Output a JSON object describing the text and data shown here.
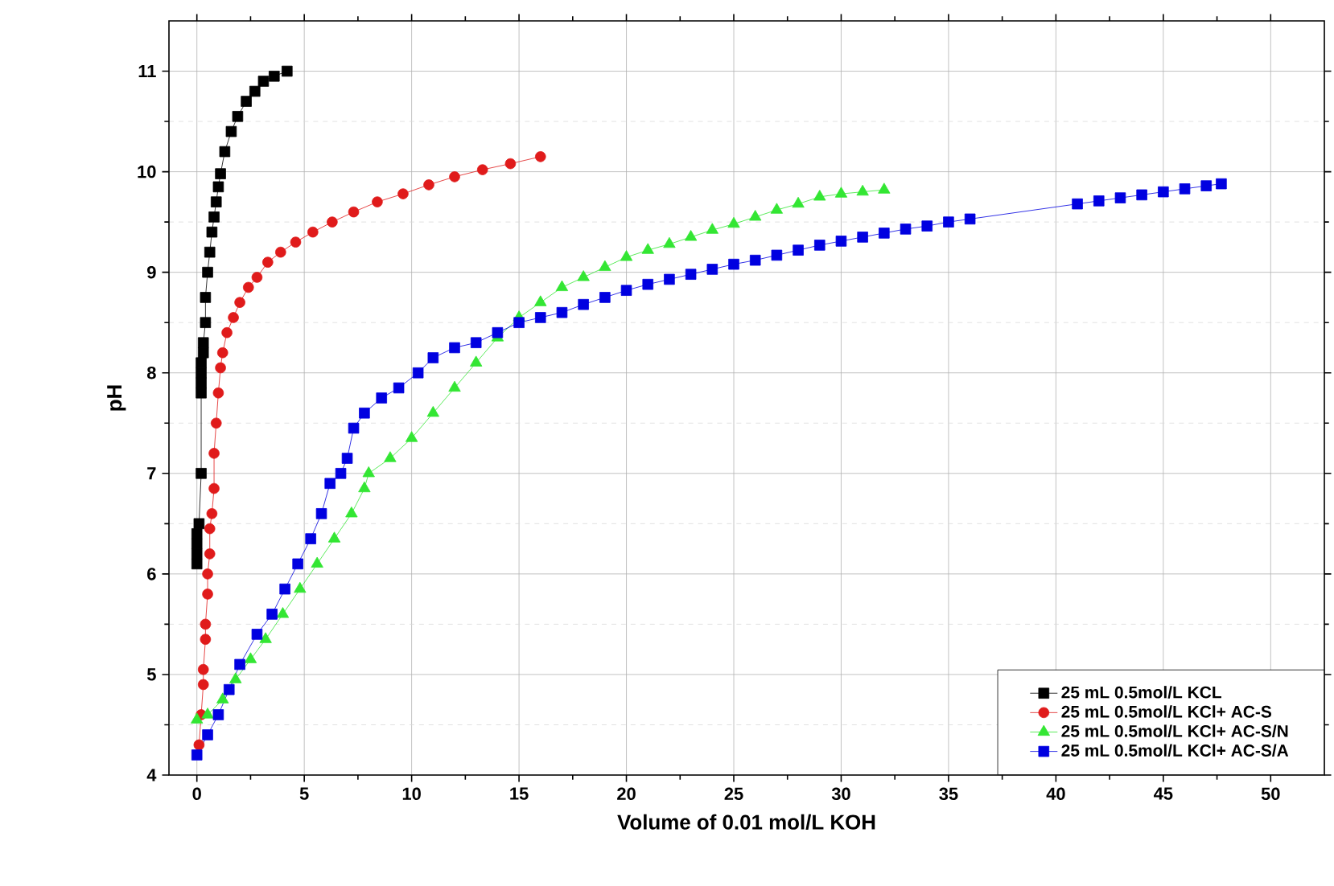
{
  "chart_data": {
    "type": "line",
    "xlabel": "Volume of 0.01 mol/L KOH",
    "ylabel": "pH",
    "xlim": [
      -1.3,
      52.5
    ],
    "ylim": [
      4,
      11.5
    ],
    "xticks": [
      0,
      5,
      10,
      15,
      20,
      25,
      30,
      35,
      40,
      45,
      50
    ],
    "yticks": [
      4,
      5,
      6,
      7,
      8,
      9,
      10,
      11
    ],
    "grid": true,
    "legend": "bottom right",
    "line_style": "solid",
    "series": [
      {
        "name": "25 mL 0.5mol/L KCL",
        "color": "#000000",
        "marker": "square",
        "x": [
          0,
          0,
          0,
          0,
          0.1,
          0.2,
          0.2,
          0.2,
          0.2,
          0.2,
          0.3,
          0.3,
          0.4,
          0.4,
          0.5,
          0.6,
          0.7,
          0.8,
          0.9,
          1.0,
          1.1,
          1.3,
          1.6,
          1.9,
          2.3,
          2.7,
          3.1,
          3.6,
          4.2
        ],
        "values": [
          6.1,
          6.2,
          6.3,
          6.4,
          6.5,
          7.0,
          7.8,
          7.9,
          8.0,
          8.1,
          8.2,
          8.3,
          8.5,
          8.75,
          9.0,
          9.2,
          9.4,
          9.55,
          9.7,
          9.85,
          9.98,
          10.2,
          10.4,
          10.55,
          10.7,
          10.8,
          10.9,
          10.95,
          11.0
        ]
      },
      {
        "name": "25 mL 0.5mol/L KCl+ AC-S",
        "color": "#e01b1b",
        "marker": "circle",
        "x": [
          0.1,
          0.2,
          0.3,
          0.3,
          0.4,
          0.4,
          0.5,
          0.5,
          0.6,
          0.6,
          0.7,
          0.8,
          0.8,
          0.9,
          1.0,
          1.1,
          1.2,
          1.4,
          1.7,
          2,
          2.4,
          2.8,
          3.3,
          3.9,
          4.6,
          5.4,
          6.3,
          7.3,
          8.4,
          9.6,
          10.8,
          12,
          13.3,
          14.6,
          16
        ],
        "values": [
          4.3,
          4.6,
          4.9,
          5.05,
          5.35,
          5.5,
          5.8,
          6.0,
          6.2,
          6.45,
          6.6,
          6.85,
          7.2,
          7.5,
          7.8,
          8.05,
          8.2,
          8.4,
          8.55,
          8.7,
          8.85,
          8.95,
          9.1,
          9.2,
          9.3,
          9.4,
          9.5,
          9.6,
          9.7,
          9.78,
          9.87,
          9.95,
          10.02,
          10.08,
          10.15
        ]
      },
      {
        "name": "25 mL 0.5mol/L KCl+ AC-S/N",
        "color": "#33e633",
        "marker": "triangle",
        "x": [
          0,
          0.5,
          1.2,
          1.8,
          2.5,
          3.2,
          4,
          4.8,
          5.6,
          6.4,
          7.2,
          7.8,
          8,
          9,
          10,
          11,
          12,
          13,
          14,
          15,
          16,
          17,
          18,
          19,
          20,
          21,
          22,
          23,
          24,
          25,
          26,
          27,
          28,
          29,
          30,
          31,
          32
        ],
        "values": [
          4.55,
          4.6,
          4.75,
          4.95,
          5.15,
          5.35,
          5.6,
          5.85,
          6.1,
          6.35,
          6.6,
          6.85,
          7.0,
          7.15,
          7.35,
          7.6,
          7.85,
          8.1,
          8.35,
          8.55,
          8.7,
          8.85,
          8.95,
          9.05,
          9.15,
          9.22,
          9.28,
          9.35,
          9.42,
          9.48,
          9.55,
          9.62,
          9.68,
          9.75,
          9.78,
          9.8,
          9.82
        ]
      },
      {
        "name": "25 mL 0.5mol/L KCl+ AC-S/A",
        "color": "#0000e0",
        "marker": "square",
        "x": [
          0,
          0.5,
          1,
          1.5,
          2,
          2.8,
          3.5,
          4.1,
          4.7,
          5.3,
          5.8,
          6.2,
          6.7,
          7.0,
          7.3,
          7.8,
          8.6,
          9.4,
          10.3,
          11,
          12,
          13,
          14,
          15,
          16,
          17,
          18,
          19,
          20,
          21,
          22,
          23,
          24,
          25,
          26,
          27,
          28,
          29,
          30,
          31,
          32,
          33,
          34,
          35,
          36,
          41,
          42,
          43,
          44,
          45,
          46,
          47,
          47.7
        ],
        "values": [
          4.2,
          4.4,
          4.6,
          4.85,
          5.1,
          5.4,
          5.6,
          5.85,
          6.1,
          6.35,
          6.6,
          6.9,
          7.0,
          7.15,
          7.45,
          7.6,
          7.75,
          7.85,
          8.0,
          8.15,
          8.25,
          8.3,
          8.4,
          8.5,
          8.55,
          8.6,
          8.68,
          8.75,
          8.82,
          8.88,
          8.93,
          8.98,
          9.03,
          9.08,
          9.12,
          9.17,
          9.22,
          9.27,
          9.31,
          9.35,
          9.39,
          9.43,
          9.46,
          9.5,
          9.53,
          9.68,
          9.71,
          9.74,
          9.77,
          9.8,
          9.83,
          9.86,
          9.88
        ]
      }
    ]
  }
}
